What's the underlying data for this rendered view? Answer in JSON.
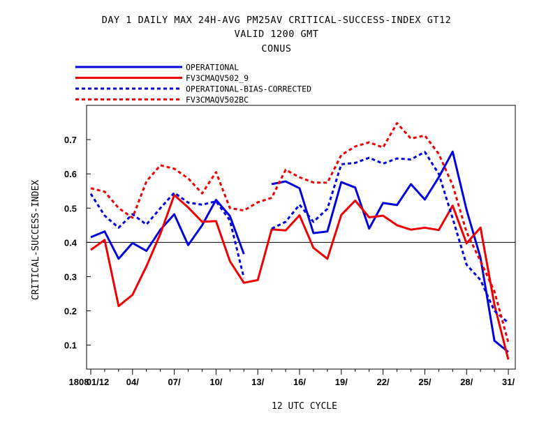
{
  "chart_data": {
    "type": "line",
    "title": "DAY 1 DAILY MAX   24H-AVG PM25AV CRITICAL-SUCCESS-INDEX GT12",
    "subtitle": [
      "VALID 1200 GMT",
      "CONUS"
    ],
    "xlabel": "12 UTC CYCLE",
    "ylabel": "CRITICAL-SUCCESS-INDEX",
    "x_start_label": "1808",
    "x_tick_labels": [
      "01/12",
      "04/",
      "07/",
      "10/",
      "13/",
      "16/",
      "19/",
      "22/",
      "25/",
      "28/",
      "31/"
    ],
    "x_tick_days": [
      1,
      4,
      7,
      10,
      13,
      16,
      19,
      22,
      25,
      28,
      31
    ],
    "xlim": [
      0.7,
      31.5
    ],
    "ylim": [
      0.03,
      0.8
    ],
    "y_ticks": [
      0.1,
      0.2,
      0.3,
      0.4,
      0.5,
      0.6,
      0.7
    ],
    "reference_line": 0.4,
    "legend_position": "top-left, above plot",
    "series": [
      {
        "name": "OPERATIONAL",
        "color": "#0000dd",
        "style": "solid",
        "x": [
          1,
          2,
          3,
          4,
          5,
          6,
          7,
          8,
          9,
          10,
          11,
          12,
          14,
          15,
          16,
          17,
          18,
          19,
          20,
          21,
          22,
          23,
          24,
          25,
          26,
          27,
          28,
          29,
          30,
          31
        ],
        "values": [
          0.415,
          0.432,
          0.352,
          0.398,
          0.375,
          0.437,
          0.482,
          0.392,
          0.45,
          0.524,
          0.477,
          0.366,
          0.57,
          0.578,
          0.558,
          0.427,
          0.432,
          0.576,
          0.56,
          0.44,
          0.515,
          0.509,
          0.57,
          0.525,
          0.59,
          0.665,
          0.495,
          0.355,
          0.113,
          0.08
        ],
        "breaks_after": [
          12
        ]
      },
      {
        "name": "FV3CMAQV502_9",
        "color": "#ee0000",
        "style": "solid",
        "x": [
          1,
          2,
          3,
          4,
          5,
          6,
          7,
          8,
          9,
          10,
          11,
          12,
          13,
          14,
          15,
          16,
          17,
          18,
          19,
          20,
          21,
          22,
          23,
          24,
          25,
          26,
          27,
          28,
          29,
          30,
          31
        ],
        "values": [
          0.378,
          0.407,
          0.214,
          0.247,
          0.33,
          0.425,
          0.538,
          0.502,
          0.46,
          0.462,
          0.345,
          0.282,
          0.29,
          0.438,
          0.435,
          0.479,
          0.384,
          0.352,
          0.48,
          0.522,
          0.473,
          0.478,
          0.45,
          0.437,
          0.443,
          0.436,
          0.507,
          0.397,
          0.443,
          0.218,
          0.058
        ]
      },
      {
        "name": "OPERATIONAL-BIAS-CORRECTED",
        "color": "#0000dd",
        "style": "dashed",
        "x": [
          1,
          2,
          3,
          4,
          5,
          6,
          7,
          8,
          9,
          10,
          11,
          12,
          14,
          15,
          16,
          17,
          18,
          19,
          20,
          21,
          22,
          23,
          24,
          25,
          26,
          27,
          28,
          29,
          30,
          31
        ],
        "values": [
          0.542,
          0.478,
          0.443,
          0.482,
          0.452,
          0.5,
          0.545,
          0.516,
          0.51,
          0.52,
          0.464,
          0.296,
          0.44,
          0.46,
          0.51,
          0.46,
          0.498,
          0.628,
          0.632,
          0.647,
          0.63,
          0.645,
          0.642,
          0.664,
          0.6,
          0.47,
          0.335,
          0.29,
          0.2,
          0.165
        ],
        "breaks_after": [
          12
        ]
      },
      {
        "name": "FV3CMAQV502BC",
        "color": "#ee0000",
        "style": "dashed",
        "x": [
          1,
          2,
          3,
          4,
          5,
          6,
          7,
          8,
          9,
          10,
          11,
          12,
          13,
          14,
          15,
          16,
          17,
          18,
          19,
          20,
          21,
          22,
          23,
          24,
          25,
          26,
          27,
          28,
          29,
          30,
          31
        ],
        "values": [
          0.558,
          0.548,
          0.5,
          0.472,
          0.578,
          0.625,
          0.615,
          0.587,
          0.543,
          0.605,
          0.5,
          0.493,
          0.517,
          0.53,
          0.612,
          0.59,
          0.575,
          0.574,
          0.655,
          0.68,
          0.692,
          0.677,
          0.748,
          0.703,
          0.712,
          0.658,
          0.567,
          0.43,
          0.345,
          0.257,
          0.108
        ]
      }
    ]
  }
}
